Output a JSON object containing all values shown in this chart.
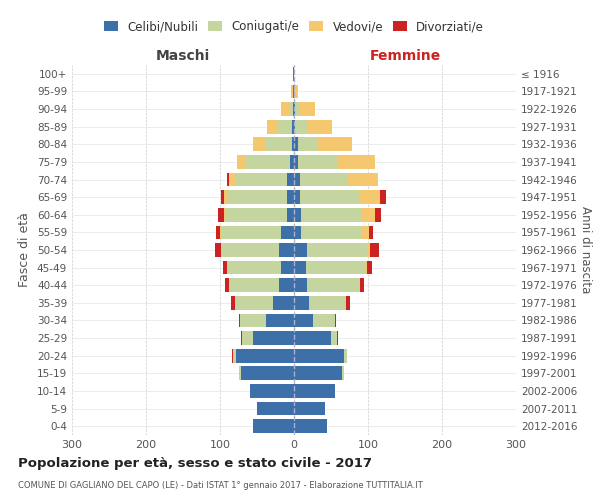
{
  "age_groups": [
    "0-4",
    "5-9",
    "10-14",
    "15-19",
    "20-24",
    "25-29",
    "30-34",
    "35-39",
    "40-44",
    "45-49",
    "50-54",
    "55-59",
    "60-64",
    "65-69",
    "70-74",
    "75-79",
    "80-84",
    "85-89",
    "90-94",
    "95-99",
    "100+"
  ],
  "birth_years": [
    "2012-2016",
    "2007-2011",
    "2002-2006",
    "1997-2001",
    "1992-1996",
    "1987-1991",
    "1982-1986",
    "1977-1981",
    "1972-1976",
    "1967-1971",
    "1962-1966",
    "1957-1961",
    "1952-1956",
    "1947-1951",
    "1942-1946",
    "1937-1941",
    "1932-1936",
    "1927-1931",
    "1922-1926",
    "1917-1921",
    "≤ 1916"
  ],
  "maschi_celibi": [
    55,
    50,
    60,
    72,
    78,
    55,
    38,
    28,
    20,
    18,
    20,
    18,
    10,
    10,
    10,
    5,
    3,
    3,
    2,
    1,
    1
  ],
  "maschi_coniugati": [
    0,
    0,
    0,
    2,
    5,
    15,
    35,
    52,
    68,
    72,
    78,
    80,
    82,
    80,
    70,
    60,
    35,
    18,
    5,
    1,
    0
  ],
  "maschi_vedovi": [
    0,
    0,
    0,
    0,
    0,
    0,
    0,
    0,
    0,
    1,
    1,
    2,
    3,
    5,
    8,
    12,
    18,
    15,
    10,
    2,
    0
  ],
  "maschi_divorziati": [
    0,
    0,
    0,
    0,
    1,
    2,
    2,
    5,
    5,
    5,
    8,
    5,
    8,
    3,
    3,
    0,
    0,
    0,
    0,
    0,
    0
  ],
  "femmine_nubili": [
    45,
    42,
    55,
    65,
    68,
    50,
    25,
    20,
    18,
    16,
    18,
    10,
    10,
    8,
    8,
    5,
    5,
    2,
    2,
    0,
    0
  ],
  "femmine_coniugate": [
    0,
    0,
    0,
    2,
    3,
    8,
    30,
    50,
    70,
    80,
    80,
    80,
    82,
    80,
    65,
    55,
    28,
    15,
    5,
    0,
    0
  ],
  "femmine_vedove": [
    0,
    0,
    0,
    0,
    0,
    0,
    0,
    0,
    1,
    2,
    5,
    12,
    18,
    28,
    40,
    50,
    45,
    35,
    22,
    5,
    0
  ],
  "femmine_divorziate": [
    0,
    0,
    0,
    0,
    0,
    2,
    2,
    5,
    5,
    8,
    12,
    5,
    8,
    8,
    0,
    0,
    0,
    0,
    0,
    1,
    0
  ],
  "color_celibi": "#3d6fa8",
  "color_coniugati": "#c5d5a0",
  "color_vedovi": "#f5c76e",
  "color_divorziati": "#cc2222",
  "xlim": 300,
  "title": "Popolazione per età, sesso e stato civile - 2017",
  "subtitle": "COMUNE DI GAGLIANO DEL CAPO (LE) - Dati ISTAT 1° gennaio 2017 - Elaborazione TUTTITALIA.IT",
  "ylabel_left": "Fasce di età",
  "ylabel_right": "Anni di nascita",
  "label_maschi": "Maschi",
  "label_femmine": "Femmine",
  "bg_color": "#ffffff",
  "grid_color": "#cccccc"
}
